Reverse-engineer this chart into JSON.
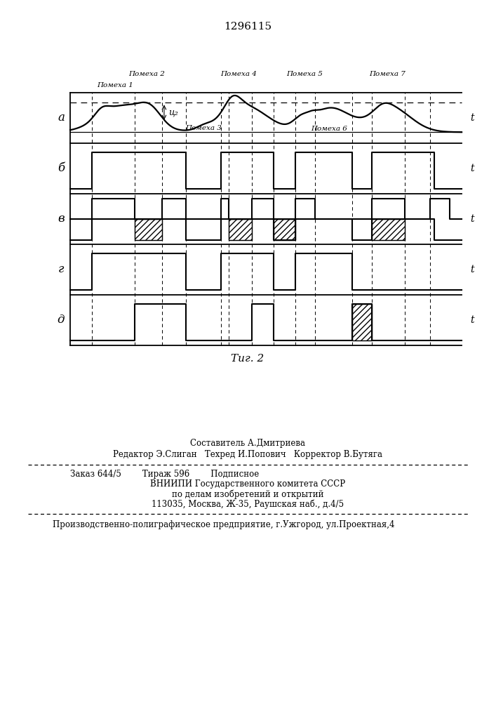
{
  "title": "1296115",
  "fig_label": "Τиг. 2",
  "row_labels": [
    "а",
    "б",
    "в",
    "г",
    "д"
  ],
  "row_labels_italic": [
    "а",
    "б",
    "в",
    "г",
    "д"
  ],
  "t_label": "t",
  "interference_labels": {
    "p1": "Помеха 1",
    "p2": "Помеха 2",
    "p3": "Помеха 3",
    "p4": "Помеха 4",
    "p5": "Помеха 5",
    "p6": "Помеха 6",
    "p7": "Помеха 7"
  },
  "u2_label": "ц₂",
  "footer_line1": "Составитель А.Дмитриева",
  "footer_line2": "Редактор Э.Слиган   Техред И.Попович   Корректор В.Бутяга",
  "footer_line3": "Заказ 644/5        Тираж 596        Подписное",
  "footer_line4": "ВНИИПИ Государственного комитета СССР",
  "footer_line5": "по делам изобретений и открытий",
  "footer_line6": "113035, Москва, Ж-35, Раушская наб., д.4/5",
  "footer_line7": "Производственно-полиграфическое предприятие, г.Ужгород, ул.Проектная,4"
}
